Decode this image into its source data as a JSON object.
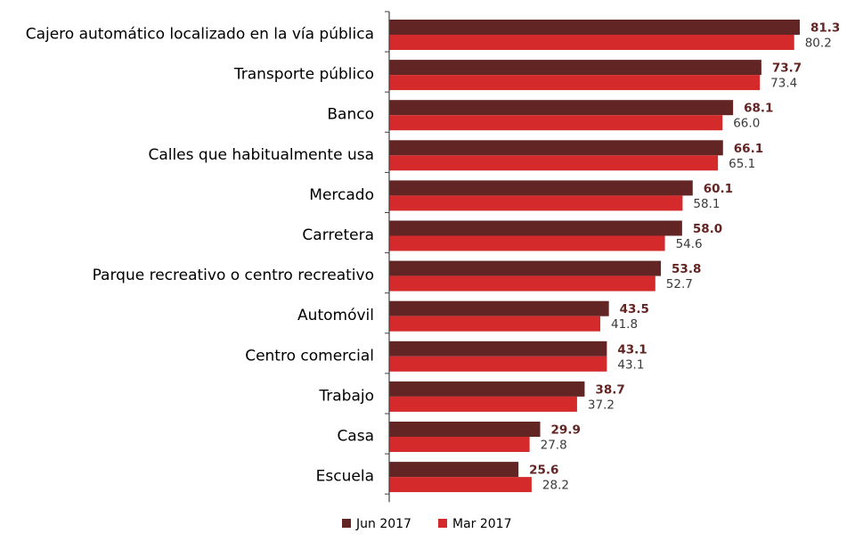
{
  "chart_data": {
    "type": "bar",
    "orientation": "horizontal",
    "categories": [
      "Cajero automático localizado en la vía pública",
      "Transporte público",
      "Banco",
      "Calles que habitualmente usa",
      "Mercado",
      "Carretera",
      "Parque recreativo o centro recreativo",
      "Automóvil",
      "Centro comercial",
      "Trabajo",
      "Casa",
      "Escuela"
    ],
    "series": [
      {
        "name": "Jun 2017",
        "color": "#632523",
        "values": [
          81.3,
          73.7,
          68.1,
          66.1,
          60.1,
          58.0,
          53.8,
          43.5,
          43.1,
          38.7,
          29.9,
          25.6
        ],
        "labels": [
          "81.3",
          "73.7",
          "68.1",
          "66.1",
          "60.1",
          "58.0",
          "53.8",
          "43.5",
          "43.1",
          "38.7",
          "29.9",
          "25.6"
        ]
      },
      {
        "name": "Mar 2017",
        "color": "#d42a2c",
        "values": [
          80.2,
          73.4,
          66.0,
          65.1,
          58.1,
          54.6,
          52.7,
          41.8,
          43.1,
          37.2,
          27.8,
          28.2
        ],
        "labels": [
          "80.2",
          "73.4",
          "66.0",
          "65.1",
          "58.1",
          "54.6",
          "52.7",
          "41.8",
          "43.1",
          "37.2",
          "27.8",
          "28.2"
        ]
      }
    ],
    "xlim": [
      0,
      100
    ],
    "grid": false,
    "legend_position": "bottom",
    "title": "",
    "xlabel": "",
    "ylabel": ""
  }
}
